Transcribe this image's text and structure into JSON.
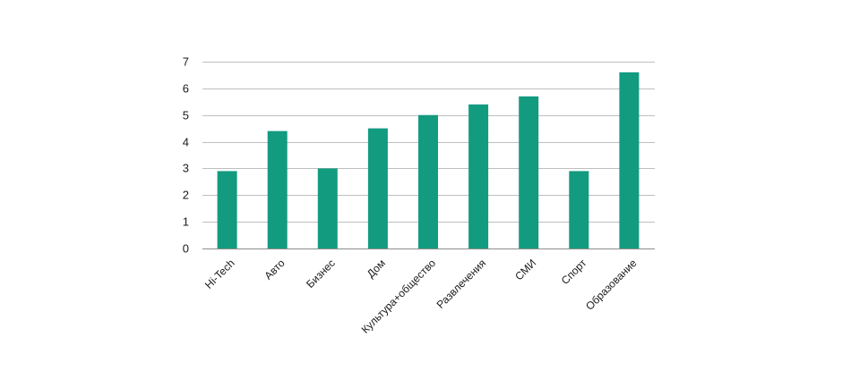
{
  "chart_data": {
    "type": "bar",
    "title": "",
    "xlabel": "",
    "ylabel": "",
    "categories": [
      "Hi-Tech",
      "Авто",
      "Бизнес",
      "Дом",
      "Культура+общество",
      "Развлечения",
      "СМИ",
      "Спорт",
      "Образование"
    ],
    "values": [
      2.9,
      4.4,
      3.0,
      4.5,
      5.0,
      5.4,
      5.7,
      2.9,
      6.6
    ],
    "ylim": [
      0,
      7
    ],
    "yticks": [
      "0",
      "1",
      "2",
      "3",
      "4",
      "5",
      "6",
      "7"
    ],
    "grid": true,
    "legend": "none",
    "bar_color": "#139b80"
  }
}
